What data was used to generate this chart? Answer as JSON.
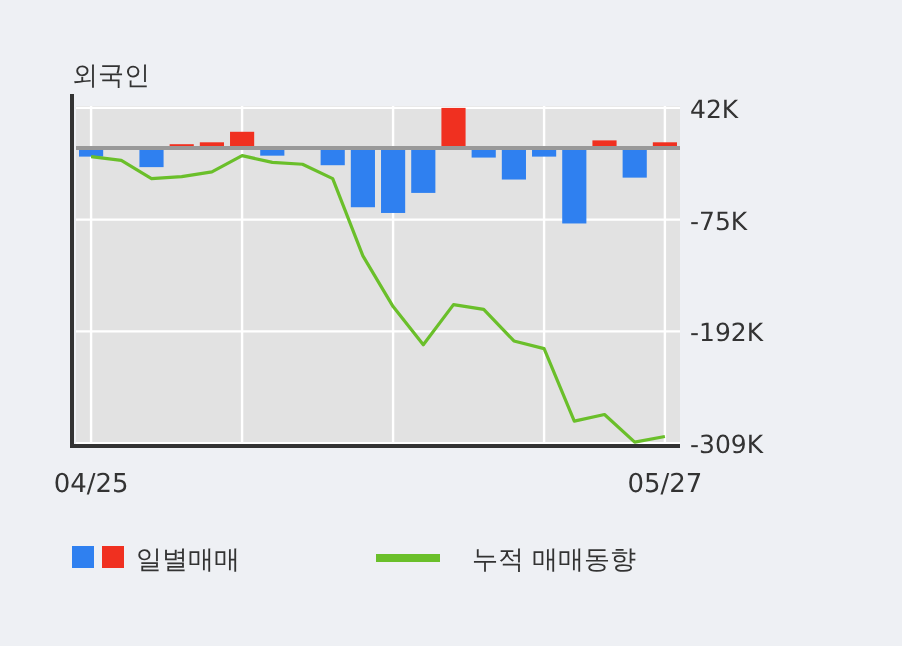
{
  "chart_data": {
    "type": "bar",
    "title": "외국인",
    "categories": [
      "04/25",
      null,
      null,
      null,
      null,
      null,
      null,
      null,
      null,
      null,
      null,
      null,
      null,
      null,
      null,
      null,
      null,
      null,
      null,
      "05/27"
    ],
    "series": [
      {
        "name": "일별매매",
        "colors": [
          "#2f80f0",
          "#2f80f0",
          "#2f80f0",
          "#f03020",
          "#f03020",
          "#f03020",
          "#2f80f0",
          "#2f80f0",
          "#2f80f0",
          "#2f80f0",
          "#2f80f0",
          "#2f80f0",
          "#f03020",
          "#2f80f0",
          "#2f80f0",
          "#2f80f0",
          "#2f80f0",
          "#f03020",
          "#2f80f0",
          "#f03020"
        ],
        "values": [
          -9000,
          0,
          -20000,
          4000,
          6000,
          17000,
          -8000,
          0,
          -18000,
          -62000,
          -68000,
          -47000,
          42000,
          -10000,
          -33000,
          -9000,
          -79000,
          8000,
          -31000,
          6000
        ]
      },
      {
        "name": "누적 매매동향",
        "type": "line",
        "color": "#6abf2a",
        "values": [
          -9000,
          -13000,
          -32000,
          -30000,
          -25000,
          -8000,
          -15000,
          -17000,
          -32000,
          -113000,
          -166000,
          -206000,
          -164000,
          -169000,
          -202000,
          -210000,
          -286000,
          -279000,
          -308000,
          -302000
        ]
      }
    ],
    "ylim": [
      -312000,
      44000
    ],
    "yticks": [
      {
        "value": 42000,
        "label": "42K"
      },
      {
        "value": -75000,
        "label": "-75K"
      },
      {
        "value": -192000,
        "label": "-192K"
      },
      {
        "value": -309000,
        "label": "-309K"
      }
    ],
    "grid": true,
    "legend": "bottom"
  }
}
